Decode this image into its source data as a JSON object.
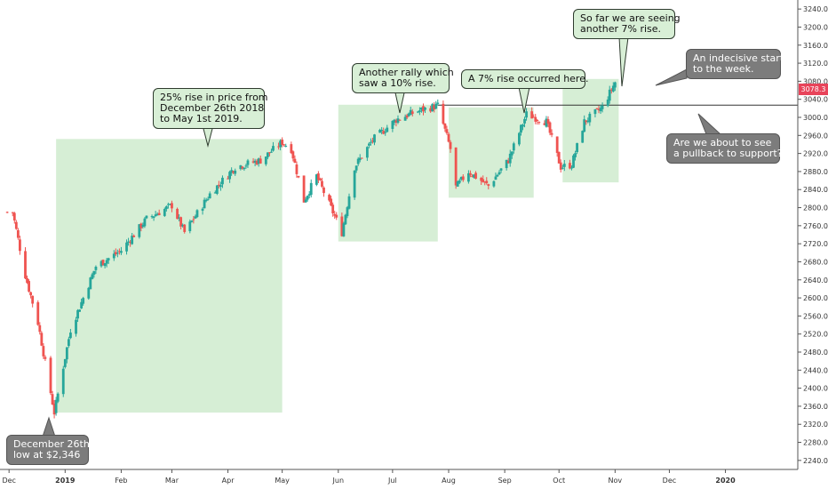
{
  "chart_data": {
    "type": "candlestick",
    "title": "",
    "xlabel": "",
    "ylabel": "",
    "ylim": [
      2220,
      3260
    ],
    "y_ticks": [
      "2240.0",
      "2280.0",
      "2320.0",
      "2360.0",
      "2400.0",
      "2440.0",
      "2480.0",
      "2520.0",
      "2560.0",
      "2600.0",
      "2640.0",
      "2680.0",
      "2720.0",
      "2760.0",
      "2800.0",
      "2840.0",
      "2880.0",
      "2920.0",
      "2960.0",
      "3000.0",
      "3040.0",
      "3080.0",
      "3120.0",
      "3160.0",
      "3200.0",
      "3240.0"
    ],
    "x_ticks": [
      {
        "label": "Dec",
        "date": "2018-12-01",
        "bold": false
      },
      {
        "label": "2019",
        "date": "2019-01-01",
        "bold": true
      },
      {
        "label": "Feb",
        "date": "2019-02-01",
        "bold": false
      },
      {
        "label": "Mar",
        "date": "2019-03-01",
        "bold": false
      },
      {
        "label": "Apr",
        "date": "2019-04-01",
        "bold": false
      },
      {
        "label": "May",
        "date": "2019-05-01",
        "bold": false
      },
      {
        "label": "Jun",
        "date": "2019-06-01",
        "bold": false
      },
      {
        "label": "Jul",
        "date": "2019-07-01",
        "bold": false
      },
      {
        "label": "Aug",
        "date": "2019-08-01",
        "bold": false
      },
      {
        "label": "Sep",
        "date": "2019-09-01",
        "bold": false
      },
      {
        "label": "Oct",
        "date": "2019-10-01",
        "bold": false
      },
      {
        "label": "Nov",
        "date": "2019-11-01",
        "bold": false
      },
      {
        "label": "Dec",
        "date": "2019-12-01",
        "bold": false
      },
      {
        "label": "2020",
        "date": "2020-01-01",
        "bold": true
      }
    ],
    "x_range": [
      "2018-11-26",
      "2020-02-10"
    ],
    "last_price": "3078.3",
    "support_level": 3027,
    "colors": {
      "up": "#26a69a",
      "down": "#ef5350",
      "box": "#d6eed5",
      "axis_text": "#333333",
      "last_price": "#e8445a"
    },
    "key_points": [
      {
        "date": "2018-12-03",
        "value": 2790
      },
      {
        "date": "2018-12-10",
        "value": 2650
      },
      {
        "date": "2018-12-17",
        "value": 2545
      },
      {
        "date": "2018-12-26",
        "value": 2346
      },
      {
        "date": "2019-01-04",
        "value": 2530
      },
      {
        "date": "2019-01-18",
        "value": 2670
      },
      {
        "date": "2019-02-01",
        "value": 2705
      },
      {
        "date": "2019-02-15",
        "value": 2775
      },
      {
        "date": "2019-03-01",
        "value": 2805
      },
      {
        "date": "2019-03-08",
        "value": 2745
      },
      {
        "date": "2019-03-22",
        "value": 2830
      },
      {
        "date": "2019-04-05",
        "value": 2890
      },
      {
        "date": "2019-04-19",
        "value": 2905
      },
      {
        "date": "2019-05-01",
        "value": 2945
      },
      {
        "date": "2019-05-06",
        "value": 2930
      },
      {
        "date": "2019-05-13",
        "value": 2815
      },
      {
        "date": "2019-05-20",
        "value": 2870
      },
      {
        "date": "2019-05-29",
        "value": 2790
      },
      {
        "date": "2019-06-03",
        "value": 2745
      },
      {
        "date": "2019-06-10",
        "value": 2890
      },
      {
        "date": "2019-06-20",
        "value": 2950
      },
      {
        "date": "2019-07-03",
        "value": 2995
      },
      {
        "date": "2019-07-15",
        "value": 3014
      },
      {
        "date": "2019-07-26",
        "value": 3026
      },
      {
        "date": "2019-08-02",
        "value": 2930
      },
      {
        "date": "2019-08-05",
        "value": 2845
      },
      {
        "date": "2019-08-12",
        "value": 2880
      },
      {
        "date": "2019-08-23",
        "value": 2848
      },
      {
        "date": "2019-09-03",
        "value": 2905
      },
      {
        "date": "2019-09-13",
        "value": 3007
      },
      {
        "date": "2019-09-24",
        "value": 2990
      },
      {
        "date": "2019-10-02",
        "value": 2890
      },
      {
        "date": "2019-10-08",
        "value": 2895
      },
      {
        "date": "2019-10-15",
        "value": 2990
      },
      {
        "date": "2019-10-25",
        "value": 3022
      },
      {
        "date": "2019-11-01",
        "value": 3078
      }
    ],
    "boxes": [
      {
        "start": "2018-12-27",
        "end": "2019-05-01",
        "low": 2346,
        "high": 2952
      },
      {
        "start": "2019-06-01",
        "end": "2019-07-26",
        "low": 2725,
        "high": 3028
      },
      {
        "start": "2019-08-01",
        "end": "2019-09-17",
        "low": 2822,
        "high": 3022
      },
      {
        "start": "2019-10-03",
        "end": "2019-11-03",
        "low": 2856,
        "high": 3085
      }
    ]
  },
  "annotations": {
    "dec_low": "December 26th\nlow at $2,346",
    "rise_25": "25% rise in price from\nDecember 26th 2018\nto May 1st 2019.",
    "rally_10": "Another rally which\nsaw a 10% rise.",
    "rise_7": "A 7% rise occurred here.",
    "so_far_7": "So far we are seeing\nanother 7% rise.",
    "indecisive": "An indecisive start\nto the week.",
    "pullback": "Are we about to see\na pullback to support?"
  }
}
